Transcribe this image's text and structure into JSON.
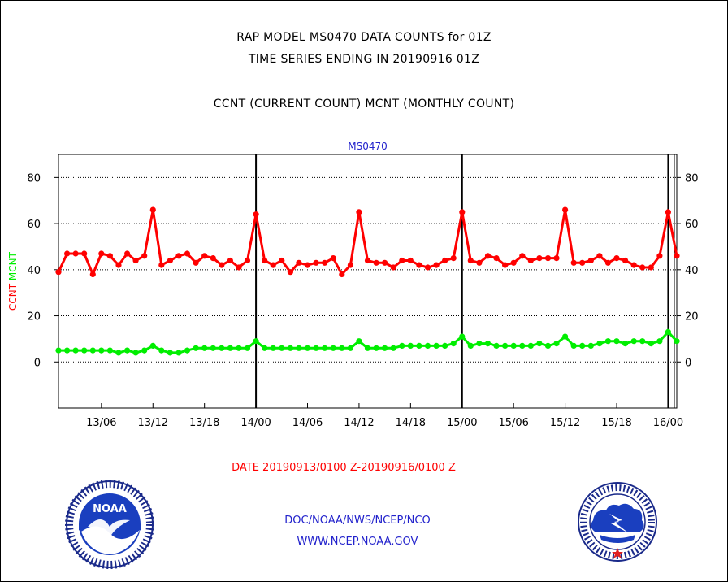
{
  "titles": {
    "line1": "RAP MODEL MS0470 DATA COUNTS for 01Z",
    "line2": "TIME SERIES ENDING IN 20190916 01Z",
    "line3": "CCNT (CURRENT COUNT) MCNT (MONTHLY COUNT)"
  },
  "footer": {
    "org_line": "DOC/NOAA/NWS/NCEP/NCO",
    "url_line": "WWW.NCEP.NOAA.GOV"
  },
  "logos": {
    "noaa_left": {
      "icon": "noaa-logo-icon",
      "text": "NOAA"
    },
    "nws_right": {
      "icon": "nws-logo-icon"
    }
  },
  "colors": {
    "ccnt": "#ff0000",
    "mcnt": "#00ee00",
    "station_label": "#2222cc",
    "footer_text": "#2222cc",
    "date_label": "#ff0000"
  },
  "chart_data": {
    "type": "line",
    "title": "MS0470",
    "ylabel_parts": [
      {
        "text": "CCNT",
        "color": "#ff0000"
      },
      {
        "text": "MCNT",
        "color": "#00ee00"
      }
    ],
    "xlabel": "DATE 20190913/0100 Z-20190916/0100 Z",
    "ylim": [
      -20,
      90
    ],
    "yticks": [
      0,
      20,
      40,
      60,
      80
    ],
    "x_start_hour": 1,
    "xlim_hours": [
      1,
      73
    ],
    "x_ticks": [
      {
        "label": "13/06",
        "hour": 6
      },
      {
        "label": "13/12",
        "hour": 12
      },
      {
        "label": "13/18",
        "hour": 18
      },
      {
        "label": "14/00",
        "hour": 24
      },
      {
        "label": "14/06",
        "hour": 30
      },
      {
        "label": "14/12",
        "hour": 36
      },
      {
        "label": "14/18",
        "hour": 42
      },
      {
        "label": "15/00",
        "hour": 48
      },
      {
        "label": "15/06",
        "hour": 54
      },
      {
        "label": "15/12",
        "hour": 60
      },
      {
        "label": "15/18",
        "hour": 66
      },
      {
        "label": "16/00",
        "hour": 72
      }
    ],
    "day_boundaries_hours": [
      24,
      48,
      72
    ],
    "grid": "horizontal dotted",
    "series": [
      {
        "name": "CCNT",
        "color": "#ff0000",
        "values": [
          39,
          47,
          47,
          47,
          38,
          47,
          46,
          42,
          47,
          44,
          46,
          66,
          42,
          44,
          46,
          47,
          43,
          46,
          45,
          42,
          44,
          41,
          44,
          64,
          44,
          42,
          44,
          39,
          43,
          42,
          43,
          43,
          45,
          38,
          42,
          65,
          44,
          43,
          43,
          41,
          44,
          44,
          42,
          41,
          42,
          44,
          45,
          65,
          44,
          43,
          46,
          45,
          42,
          43,
          46,
          44,
          45,
          45,
          45,
          66,
          43,
          43,
          44,
          46,
          43,
          45,
          44,
          42,
          41,
          41,
          46,
          65,
          46
        ]
      },
      {
        "name": "MCNT",
        "color": "#00ee00",
        "values": [
          5,
          5,
          5,
          5,
          5,
          5,
          5,
          4,
          5,
          4,
          5,
          7,
          5,
          4,
          4,
          5,
          6,
          6,
          6,
          6,
          6,
          6,
          6,
          9,
          6,
          6,
          6,
          6,
          6,
          6,
          6,
          6,
          6,
          6,
          6,
          9,
          6,
          6,
          6,
          6,
          7,
          7,
          7,
          7,
          7,
          7,
          8,
          11,
          7,
          8,
          8,
          7,
          7,
          7,
          7,
          7,
          8,
          7,
          8,
          11,
          7,
          7,
          7,
          8,
          9,
          9,
          8,
          9,
          9,
          8,
          9,
          13,
          9
        ]
      }
    ]
  }
}
